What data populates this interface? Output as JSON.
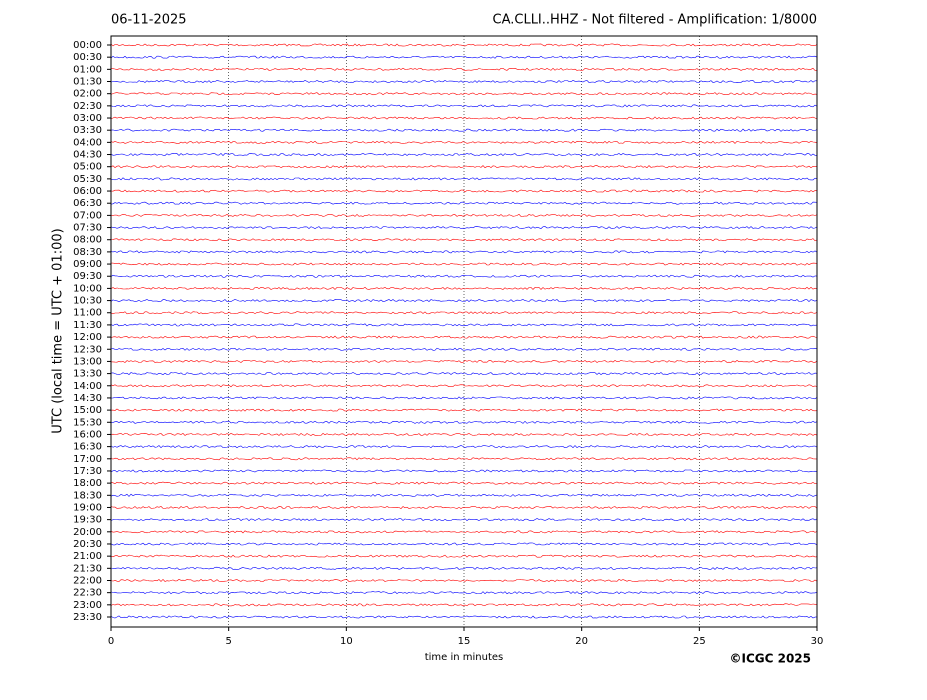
{
  "chart_data": {
    "type": "helicorder",
    "title": "06-11-2025",
    "subtitle": "CA.CLLI..HHZ - Not filtered - Amplification: 1/8000",
    "y_label": "UTC (local time = UTC + 01:00)",
    "x_label": "time in minutes",
    "copyright": "©ICGC 2025",
    "categories": [
      "00:00",
      "00:30",
      "01:00",
      "01:30",
      "02:00",
      "02:30",
      "03:00",
      "03:30",
      "04:00",
      "04:30",
      "05:00",
      "05:30",
      "06:00",
      "06:30",
      "07:00",
      "07:30",
      "08:00",
      "08:30",
      "09:00",
      "09:30",
      "10:00",
      "10:30",
      "11:00",
      "11:30",
      "12:00",
      "12:30",
      "13:00",
      "13:30",
      "14:00",
      "14:30",
      "15:00",
      "15:30",
      "16:00",
      "16:30",
      "17:00",
      "17:30",
      "18:00",
      "18:30",
      "19:00",
      "19:30",
      "20:00",
      "20:30",
      "21:00",
      "21:30",
      "22:00",
      "22:30",
      "23:00",
      "23:30"
    ],
    "trace_colors": [
      "#ff0000",
      "#0000ff"
    ],
    "xlim": [
      0,
      30
    ],
    "xticks": [
      0,
      5,
      10,
      15,
      20,
      25,
      30
    ],
    "grid": true
  }
}
